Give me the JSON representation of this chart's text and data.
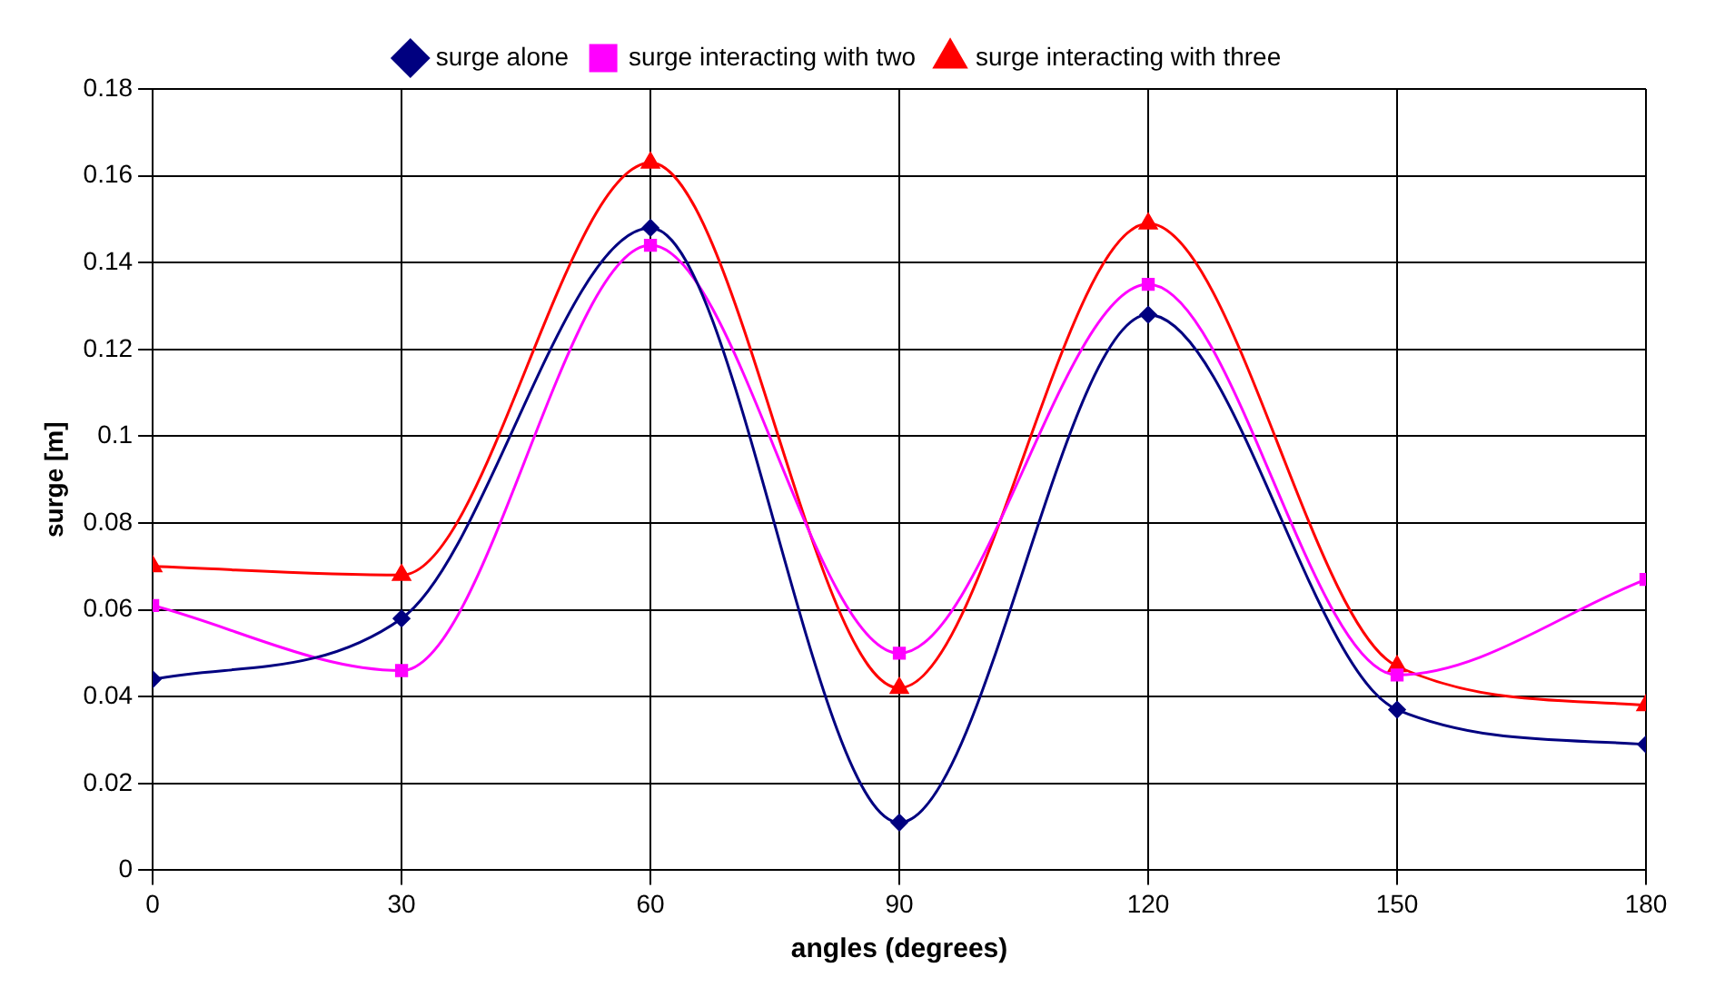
{
  "chart_data": {
    "type": "line",
    "xlabel": "angles (degrees)",
    "ylabel": "surge [m]",
    "x": [
      0,
      30,
      60,
      90,
      120,
      150,
      180
    ],
    "xlim": [
      0,
      180
    ],
    "xticks": [
      0,
      30,
      60,
      90,
      120,
      150,
      180
    ],
    "ylim": [
      0,
      0.18
    ],
    "yticks": [
      0,
      0.02,
      0.04,
      0.06,
      0.08,
      0.1,
      0.12,
      0.14,
      0.16,
      0.18
    ],
    "grid": true,
    "legend": "top",
    "series": [
      {
        "name": "surge alone",
        "color": "#000080",
        "marker": "diamond",
        "values": [
          0.044,
          0.058,
          0.148,
          0.011,
          0.128,
          0.037,
          0.029
        ]
      },
      {
        "name": "surge interacting with two",
        "color": "#ff00ff",
        "marker": "square",
        "values": [
          0.061,
          0.046,
          0.144,
          0.05,
          0.135,
          0.045,
          0.067
        ]
      },
      {
        "name": "surge interacting with three",
        "color": "#ff0000",
        "marker": "triangle",
        "values": [
          0.07,
          0.068,
          0.163,
          0.042,
          0.149,
          0.047,
          0.038
        ]
      }
    ]
  }
}
